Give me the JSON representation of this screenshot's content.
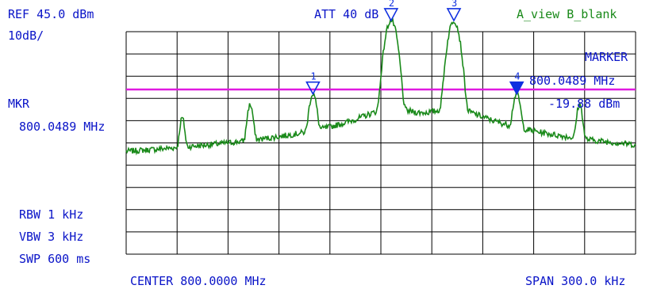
{
  "header": {
    "ref_level": "REF 45.0 dBm",
    "attenuation": "ATT 40 dB",
    "view_mode": "A_view B_blank",
    "scale": "10dB/"
  },
  "left_panel": {
    "mkr_label": "MKR",
    "mkr_freq": "800.0489 MHz",
    "rbw": "RBW 1 kHz",
    "vbw": "VBW 3 kHz",
    "swp": "SWP 600 ms"
  },
  "marker_box": {
    "title": "MARKER",
    "freq": "800.0489 MHz",
    "level": "-19.88 dBm"
  },
  "footer": {
    "center": "CENTER 800.0000 MHz",
    "span": "SPAN 300.0 kHz"
  },
  "markers": [
    {
      "label": "1",
      "offset_khz": -40,
      "level_db": -28,
      "filled": false
    },
    {
      "label": "2",
      "offset_khz": 6,
      "level_db": 5,
      "filled": false
    },
    {
      "label": "3",
      "offset_khz": 43,
      "level_db": 5,
      "filled": false
    },
    {
      "label": "4",
      "offset_khz": 80,
      "level_db": -28,
      "filled": true
    }
  ],
  "display_line_db": -26,
  "colors": {
    "text": "#0a14c8",
    "trace": "#1a8a1a",
    "grid": "#000000",
    "display_line": "#e01ae0",
    "marker": "#1030e0"
  }
}
